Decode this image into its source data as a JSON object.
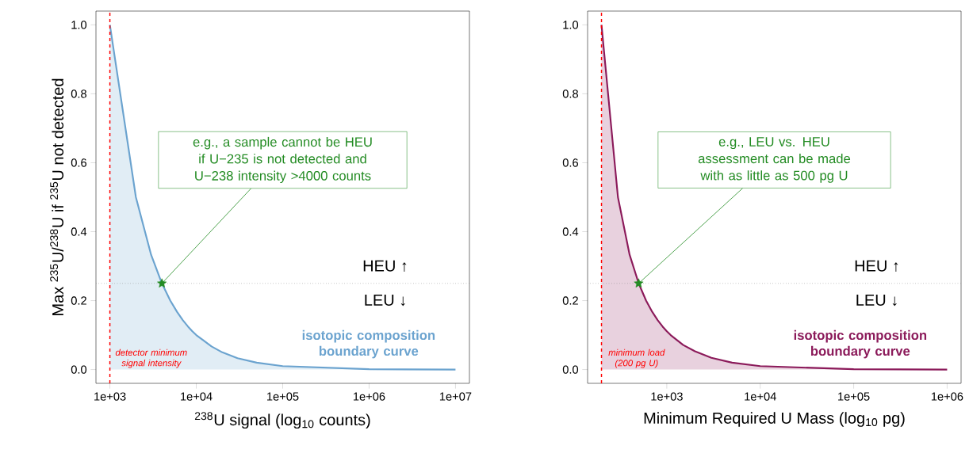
{
  "chart_data": [
    {
      "type": "area",
      "log": "x",
      "xlabel": "$^{238}$U signal (log$_{10}$ counts)",
      "ylabel": "Max $^{235}$U/$^{238}$U if $^{235}$U not detected",
      "xlim": [
        690,
        14500000
      ],
      "ylim": [
        -0.04,
        1.04
      ],
      "xticks": [
        {
          "value": 1000,
          "label": "1e+03"
        },
        {
          "value": 10000,
          "label": "1e+04"
        },
        {
          "value": 100000,
          "label": "1e+05"
        },
        {
          "value": 1000000,
          "label": "1e+06"
        },
        {
          "value": 10000000,
          "label": "1e+07"
        }
      ],
      "yticks": [
        {
          "value": 0,
          "label": "0.0"
        },
        {
          "value": 0.2,
          "label": "0.2"
        },
        {
          "value": 0.4,
          "label": "0.4"
        },
        {
          "value": 0.6,
          "label": "0.6"
        },
        {
          "value": 0.8,
          "label": "0.8"
        },
        {
          "value": 1,
          "label": "1.0"
        }
      ],
      "series": [
        {
          "name": "isotopic composition boundary curve",
          "color": "#6ba3cf",
          "marker": "none",
          "x": [
            1000,
            2000,
            3000,
            4000,
            5000,
            6000,
            7000,
            8000,
            9000,
            10000,
            15000,
            20000,
            30000,
            50000,
            100000,
            1000000,
            10000000
          ],
          "values": [
            1,
            0.5,
            0.333,
            0.25,
            0.2,
            0.167,
            0.143,
            0.125,
            0.111,
            0.1,
            0.067,
            0.05,
            0.033,
            0.02,
            0.01,
            0.001,
            0
          ]
        },
        {
          "type": "scatter",
          "color": "#228b22",
          "marker": "star",
          "x": [
            4000
          ],
          "values": [
            0.25
          ]
        }
      ],
      "ref_lines": [
        {
          "axis": "x",
          "value": 1000,
          "label": "detector minimum signal intensity",
          "color": "#ff0000",
          "line_style": "dashed"
        },
        {
          "axis": "y",
          "value": 0.25,
          "color": "#808080",
          "line_style": "dotted"
        }
      ],
      "annotations": [
        {
          "text": "e.g., a sample cannot be HEU if U−235 is not detected and U−238 intensity >4000 counts",
          "x": 4000,
          "y": 0.25
        },
        "HEU ↑",
        "LEU ↓"
      ]
    },
    {
      "type": "area",
      "log": "x",
      "xlabel": "Minimum Required U Mass (log$_{10}$ pg)",
      "xlim": [
        142,
        1410000
      ],
      "ylim": [
        -0.04,
        1.04
      ],
      "xticks": [
        {
          "value": 1000,
          "label": "1e+03"
        },
        {
          "value": 10000,
          "label": "1e+04"
        },
        {
          "value": 100000,
          "label": "1e+05"
        },
        {
          "value": 1000000,
          "label": "1e+06"
        }
      ],
      "yticks": [
        {
          "value": 0,
          "label": "0.0"
        },
        {
          "value": 0.2,
          "label": "0.2"
        },
        {
          "value": 0.4,
          "label": "0.4"
        },
        {
          "value": 0.6,
          "label": "0.6"
        },
        {
          "value": 0.8,
          "label": "0.8"
        },
        {
          "value": 1,
          "label": "1.0"
        }
      ],
      "series": [
        {
          "name": "isotopic composition boundary curve",
          "color": "#8b1a5a",
          "marker": "none",
          "x": [
            200,
            300,
            400,
            500,
            600,
            700,
            800,
            900,
            1000,
            1100,
            1500,
            2000,
            3000,
            5000,
            10000,
            100000,
            1000000
          ],
          "values": [
            1,
            0.5,
            0.333,
            0.25,
            0.2,
            0.167,
            0.143,
            0.125,
            0.111,
            0.1,
            0.071,
            0.053,
            0.034,
            0.02,
            0.01,
            0.001,
            0
          ]
        },
        {
          "type": "scatter",
          "color": "#228b22",
          "marker": "star",
          "x": [
            500
          ],
          "values": [
            0.25
          ]
        }
      ],
      "ref_lines": [
        {
          "axis": "x",
          "value": 200,
          "label": "minimum load (200 pg U)",
          "color": "#ff0000",
          "line_style": "dashed"
        },
        {
          "axis": "y",
          "value": 0.25,
          "color": "#808080",
          "line_style": "dotted"
        }
      ],
      "annotations": [
        {
          "text": "e.g., LEU vs. HEU assessment can be made with as little as 500 pg U",
          "x": 500,
          "y": 0.25
        },
        "HEU ↑",
        "LEU ↓"
      ]
    }
  ]
}
